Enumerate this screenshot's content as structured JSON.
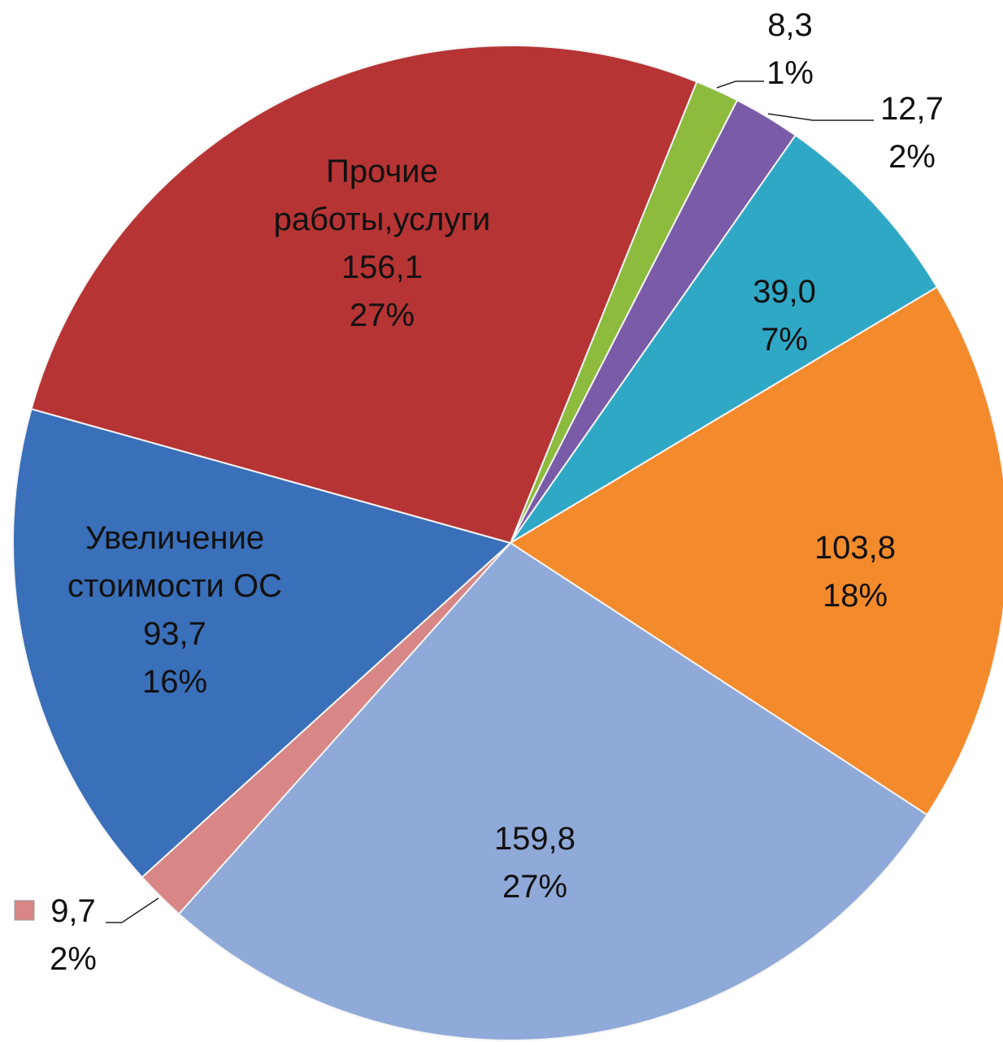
{
  "chart_data": {
    "type": "pie",
    "categories": [
      null,
      null,
      null,
      null,
      null,
      null,
      "Увеличение стоимости ОС",
      "Прочие работы,услуги"
    ],
    "values": [
      8.3,
      12.7,
      39.0,
      103.8,
      159.8,
      9.7,
      93.7,
      156.1
    ],
    "value_labels": [
      "8,3",
      "12,7",
      "39,0",
      "103,8",
      "159,8",
      "9,7",
      "93,7",
      "156,1"
    ],
    "percents": [
      1,
      2,
      7,
      18,
      27,
      2,
      16,
      27
    ],
    "percent_labels": [
      "1%",
      "2%",
      "7%",
      "18%",
      "27%",
      "2%",
      "16%",
      "27%"
    ],
    "colors": [
      "#8dbb3e",
      "#7a5ba8",
      "#2fa8c6",
      "#f38a2b",
      "#8fa9d8",
      "#d88686",
      "#3a6fb9",
      "#b63434"
    ]
  }
}
